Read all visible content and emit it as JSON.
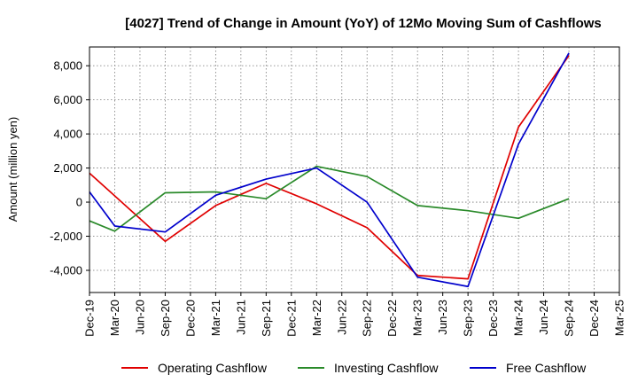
{
  "chart_data": {
    "type": "line",
    "title": "[4027]  Trend of Change in Amount (YoY) of 12Mo Moving Sum of Cashflows",
    "xlabel": "",
    "ylabel": "Amount (million yen)",
    "ylim": [
      -5300,
      9100
    ],
    "yticks": [
      -4000,
      -2000,
      0,
      2000,
      4000,
      6000,
      8000
    ],
    "ytick_labels": [
      "-4,000",
      "-2,000",
      "0",
      "2,000",
      "4,000",
      "6,000",
      "8,000"
    ],
    "categories": [
      "Dec-19",
      "Mar-20",
      "Jun-20",
      "Sep-20",
      "Dec-20",
      "Mar-21",
      "Jun-21",
      "Sep-21",
      "Dec-21",
      "Mar-22",
      "Jun-22",
      "Sep-22",
      "Dec-22",
      "Mar-23",
      "Jun-23",
      "Sep-23",
      "Dec-23",
      "Mar-24",
      "Jun-24",
      "Sep-24",
      "Dec-24",
      "Mar-25"
    ],
    "grid": true,
    "legend_position": "bottom",
    "series": [
      {
        "name": "Operating Cashflow",
        "color": "#e00000",
        "points": [
          [
            0,
            1700
          ],
          [
            3,
            -2300
          ],
          [
            5,
            -200
          ],
          [
            7,
            1100
          ],
          [
            9,
            -100
          ],
          [
            11,
            -1500
          ],
          [
            13,
            -4300
          ],
          [
            15,
            -4500
          ],
          [
            17,
            4400
          ],
          [
            19,
            8600
          ]
        ]
      },
      {
        "name": "Investing Cashflow",
        "color": "#2a8a2a",
        "points": [
          [
            0,
            -1100
          ],
          [
            1,
            -1700
          ],
          [
            3,
            550
          ],
          [
            5,
            600
          ],
          [
            7,
            200
          ],
          [
            9,
            2100
          ],
          [
            11,
            1500
          ],
          [
            13,
            -200
          ],
          [
            15,
            -500
          ],
          [
            17,
            -950
          ],
          [
            19,
            200
          ]
        ]
      },
      {
        "name": "Free Cashflow",
        "color": "#0000cc",
        "points": [
          [
            0,
            600
          ],
          [
            1,
            -1400
          ],
          [
            3,
            -1750
          ],
          [
            5,
            400
          ],
          [
            7,
            1350
          ],
          [
            9,
            2000
          ],
          [
            11,
            0
          ],
          [
            13,
            -4400
          ],
          [
            15,
            -4950
          ],
          [
            17,
            3400
          ],
          [
            19,
            8750
          ]
        ]
      }
    ]
  }
}
